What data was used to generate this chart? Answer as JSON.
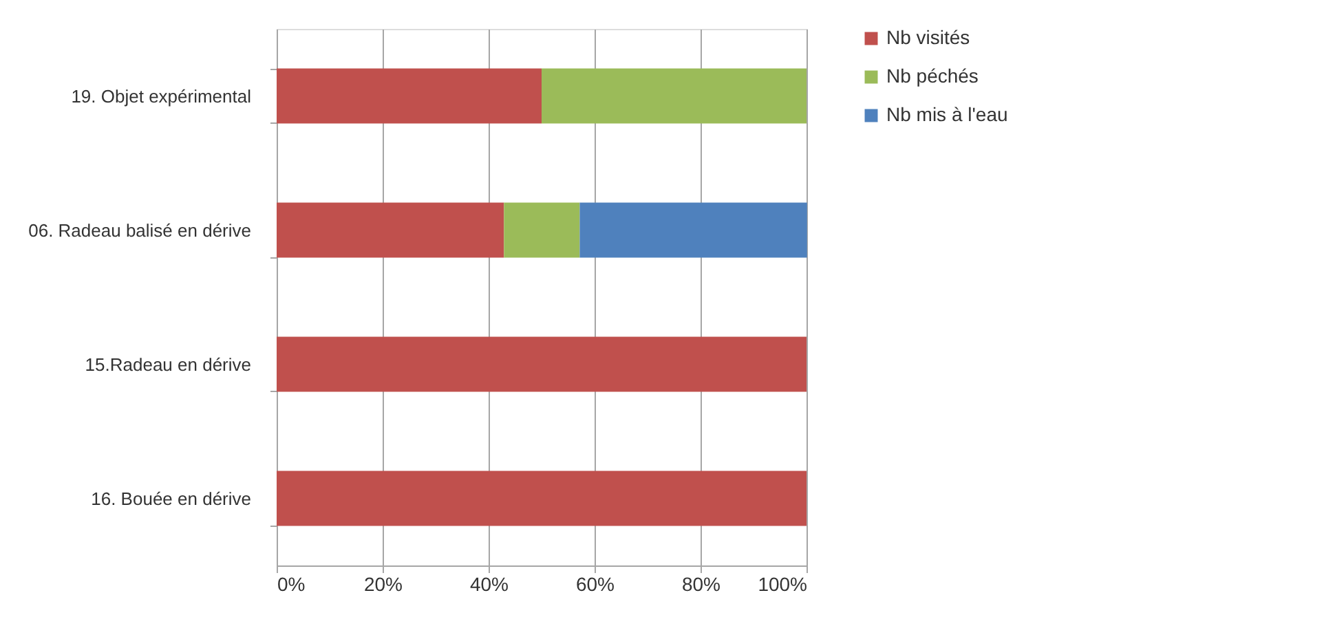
{
  "chart_data": {
    "type": "bar",
    "orientation": "horizontal",
    "stacked": true,
    "categories": [
      "19. Objet expérimental",
      "06. Radeau balisé en dérive",
      "15.Radeau en dérive",
      "16. Bouée en dérive"
    ],
    "series": [
      {
        "name": "Nb visités",
        "color": "#c0504d",
        "values": [
          50,
          42.9,
          100,
          100
        ]
      },
      {
        "name": "Nb péchés",
        "color": "#9bbb59",
        "values": [
          50,
          14.3,
          0,
          0
        ]
      },
      {
        "name": "Nb mis à l'eau",
        "color": "#4f81bd",
        "values": [
          0,
          42.9,
          0,
          0
        ]
      }
    ],
    "xlim": [
      0,
      100
    ],
    "xticks": [
      {
        "value": 0,
        "label": "0%"
      },
      {
        "value": 20,
        "label": "20%"
      },
      {
        "value": 40,
        "label": "40%"
      },
      {
        "value": 60,
        "label": "60%"
      },
      {
        "value": 80,
        "label": "80%"
      },
      {
        "value": 100,
        "label": "100%"
      }
    ],
    "grid": "x",
    "legend": "right"
  }
}
